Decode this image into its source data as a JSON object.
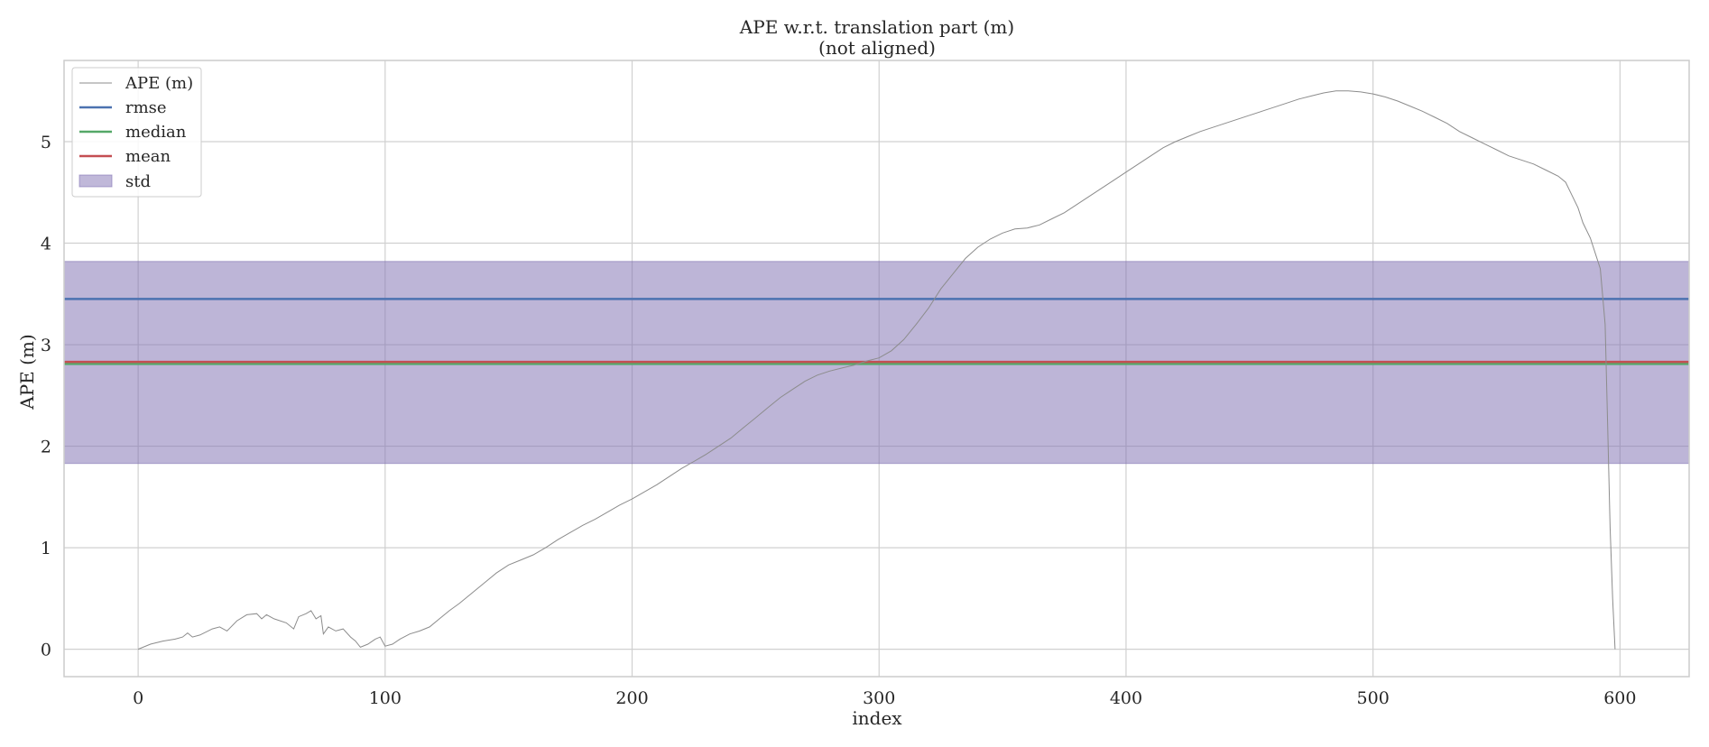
{
  "chart_data": {
    "type": "line",
    "title": "APE w.r.t. translation part (m)",
    "subtitle": "(not aligned)",
    "xlabel": "index",
    "ylabel": "APE (m)",
    "xlim": [
      -30,
      628
    ],
    "ylim": [
      -0.27,
      5.8
    ],
    "xticks": [
      0,
      100,
      200,
      300,
      400,
      500,
      600
    ],
    "yticks": [
      0,
      1,
      2,
      3,
      4,
      5
    ],
    "grid": true,
    "legend_position": "top-left",
    "legend": [
      "APE (m)",
      "rmse",
      "median",
      "mean",
      "std"
    ],
    "stats": {
      "rmse": 3.45,
      "median": 2.81,
      "mean": 2.83,
      "std_band": [
        1.83,
        3.82
      ]
    },
    "series": [
      {
        "name": "APE (m)",
        "color": "#8c8c8c",
        "x": [
          0,
          5,
          10,
          15,
          18,
          20,
          22,
          25,
          30,
          33,
          36,
          40,
          44,
          48,
          50,
          52,
          55,
          60,
          63,
          65,
          68,
          70,
          72,
          74,
          75,
          77,
          80,
          83,
          86,
          88,
          90,
          93,
          96,
          98,
          100,
          103,
          106,
          110,
          114,
          118,
          122,
          126,
          130,
          135,
          140,
          145,
          150,
          155,
          160,
          165,
          170,
          175,
          180,
          185,
          190,
          195,
          200,
          205,
          210,
          215,
          220,
          225,
          230,
          235,
          240,
          245,
          250,
          255,
          260,
          265,
          270,
          275,
          280,
          285,
          290,
          295,
          300,
          305,
          310,
          315,
          320,
          325,
          330,
          335,
          340,
          345,
          350,
          355,
          360,
          365,
          370,
          375,
          380,
          385,
          390,
          395,
          400,
          405,
          410,
          415,
          420,
          425,
          430,
          435,
          440,
          445,
          450,
          455,
          460,
          465,
          470,
          475,
          480,
          485,
          490,
          495,
          500,
          505,
          510,
          515,
          520,
          525,
          530,
          535,
          540,
          545,
          550,
          555,
          560,
          565,
          570,
          575,
          578,
          580,
          583,
          585,
          588,
          590,
          592,
          594,
          595,
          596,
          597,
          598
        ],
        "y": [
          0.0,
          0.05,
          0.08,
          0.1,
          0.12,
          0.16,
          0.12,
          0.14,
          0.2,
          0.22,
          0.18,
          0.28,
          0.34,
          0.35,
          0.3,
          0.34,
          0.3,
          0.26,
          0.2,
          0.32,
          0.35,
          0.38,
          0.3,
          0.33,
          0.15,
          0.22,
          0.18,
          0.2,
          0.12,
          0.08,
          0.02,
          0.05,
          0.1,
          0.12,
          0.03,
          0.05,
          0.1,
          0.15,
          0.18,
          0.22,
          0.3,
          0.38,
          0.45,
          0.55,
          0.65,
          0.75,
          0.83,
          0.88,
          0.93,
          1.0,
          1.08,
          1.15,
          1.22,
          1.28,
          1.35,
          1.42,
          1.48,
          1.55,
          1.62,
          1.7,
          1.78,
          1.85,
          1.92,
          2.0,
          2.08,
          2.18,
          2.28,
          2.38,
          2.48,
          2.56,
          2.64,
          2.7,
          2.74,
          2.77,
          2.8,
          2.84,
          2.87,
          2.94,
          3.05,
          3.2,
          3.36,
          3.55,
          3.7,
          3.85,
          3.96,
          4.04,
          4.1,
          4.14,
          4.15,
          4.18,
          4.24,
          4.3,
          4.38,
          4.46,
          4.54,
          4.62,
          4.7,
          4.78,
          4.86,
          4.94,
          5.0,
          5.05,
          5.1,
          5.14,
          5.18,
          5.22,
          5.26,
          5.3,
          5.34,
          5.38,
          5.42,
          5.45,
          5.48,
          5.5,
          5.5,
          5.49,
          5.47,
          5.44,
          5.4,
          5.35,
          5.3,
          5.24,
          5.18,
          5.1,
          5.04,
          4.98,
          4.92,
          4.86,
          4.82,
          4.78,
          4.72,
          4.66,
          4.6,
          4.5,
          4.35,
          4.2,
          4.05,
          3.9,
          3.75,
          3.2,
          2.2,
          1.2,
          0.5,
          0.0
        ]
      }
    ]
  }
}
